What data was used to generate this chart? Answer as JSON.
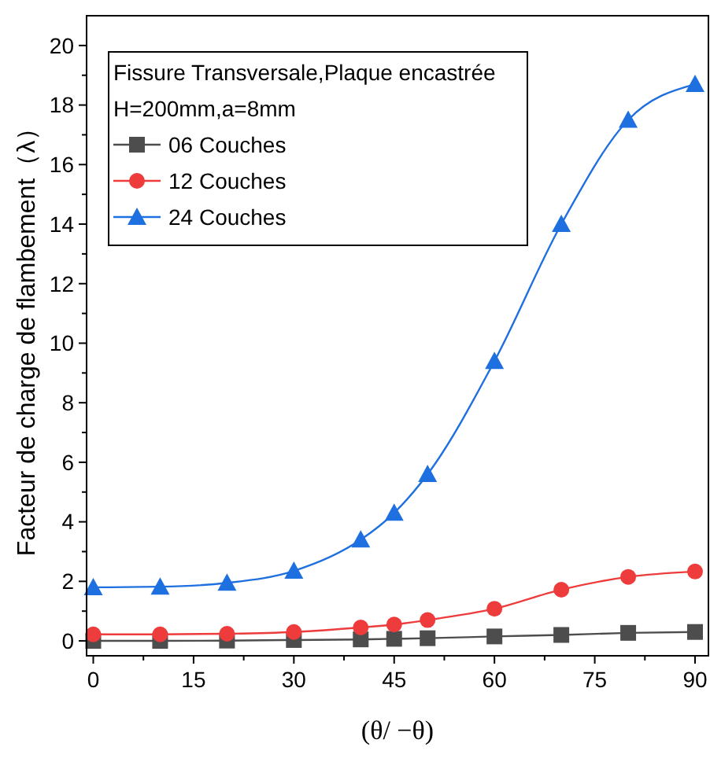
{
  "chart_data": {
    "type": "line",
    "xlabel": "(θ/ −θ)",
    "ylabel": "Facteur de charge de flambement（λ）",
    "legend_title": "Fissure Transversale,Plaque encastrée\nH=200mm,a=8mm",
    "legend": "top left",
    "line_style": "solid",
    "x": [
      0,
      10,
      20,
      30,
      40,
      45,
      50,
      60,
      70,
      80,
      90
    ],
    "series": [
      {
        "name": "06 Couches",
        "color": "#4d4d4d",
        "marker": "square",
        "values": [
          0,
          0,
          0.01,
          0.03,
          0.05,
          0.07,
          0.09,
          0.15,
          0.2,
          0.27,
          0.3
        ]
      },
      {
        "name": "12 Couches",
        "color": "#ee3b3b",
        "marker": "circle",
        "values": [
          0.22,
          0.22,
          0.24,
          0.3,
          0.45,
          0.55,
          0.7,
          1.08,
          1.72,
          2.15,
          2.33
        ]
      },
      {
        "name": "24 Couches",
        "color": "#1e6fe0",
        "marker": "triangle",
        "values": [
          1.8,
          1.82,
          1.95,
          2.35,
          3.4,
          4.3,
          5.6,
          9.4,
          14.0,
          17.5,
          18.7
        ]
      }
    ],
    "xlim": [
      -1,
      92
    ],
    "ylim": [
      -0.5,
      21
    ],
    "xticks": [
      0,
      {
        "value": 7.5,
        "label": null
      },
      15,
      {
        "value": 22.5,
        "label": null
      },
      30,
      {
        "value": 37.5,
        "label": null
      },
      45,
      {
        "value": 52.5,
        "label": null
      },
      60,
      {
        "value": 67.5,
        "label": null
      },
      75,
      {
        "value": 82.5,
        "label": null
      },
      90
    ],
    "yticks": [
      0,
      {
        "value": 1,
        "label": null
      },
      2,
      {
        "value": 3,
        "label": null
      },
      4,
      {
        "value": 5,
        "label": null
      },
      6,
      {
        "value": 7,
        "label": null
      },
      8,
      {
        "value": 9,
        "label": null
      },
      10,
      {
        "value": 11,
        "label": null
      },
      12,
      {
        "value": 13,
        "label": null
      },
      14,
      {
        "value": 15,
        "label": null
      },
      16,
      {
        "value": 17,
        "label": null
      },
      18,
      {
        "value": 19,
        "label": null
      },
      20
    ],
    "grid": false
  }
}
